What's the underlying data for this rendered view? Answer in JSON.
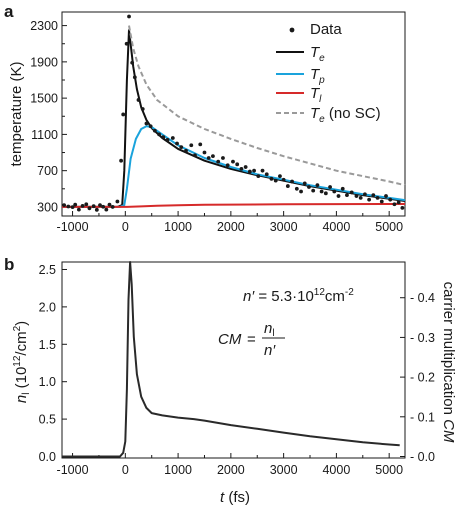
{
  "panels": {
    "a": "a",
    "b": "b"
  },
  "chart_data": [
    {
      "type": "line",
      "panel": "a",
      "ylabel": "temperature  (K)",
      "xlim": [
        -1200,
        5300
      ],
      "ylim": [
        200,
        2450
      ],
      "xticks": [
        -1000,
        0,
        1000,
        2000,
        3000,
        4000,
        5000
      ],
      "xtick_labels": [
        "-1000",
        "0",
        "1000",
        "2000",
        "3000",
        "4000",
        "5000"
      ],
      "yticks": [
        300,
        700,
        1100,
        1500,
        1900,
        2300
      ],
      "ytick_labels": [
        "300",
        "700",
        "1100",
        "1500",
        "1900",
        "2300"
      ],
      "legend_position": "top-right",
      "series": [
        {
          "name": "Data",
          "kind": "scatter",
          "color": "#1a1a1a",
          "points": [
            [
              -1160,
              320
            ],
            [
              -1080,
              305
            ],
            [
              -1000,
              298
            ],
            [
              -950,
              325
            ],
            [
              -880,
              270
            ],
            [
              -810,
              312
            ],
            [
              -740,
              330
            ],
            [
              -680,
              285
            ],
            [
              -600,
              308
            ],
            [
              -540,
              268
            ],
            [
              -480,
              320
            ],
            [
              -420,
              302
            ],
            [
              -360,
              270
            ],
            [
              -300,
              325
            ],
            [
              -240,
              300
            ],
            [
              -150,
              360
            ],
            [
              -80,
              810
            ],
            [
              -40,
              1320
            ],
            [
              25,
              2100
            ],
            [
              70,
              2400
            ],
            [
              130,
              1890
            ],
            [
              180,
              1730
            ],
            [
              250,
              1480
            ],
            [
              330,
              1380
            ],
            [
              400,
              1220
            ],
            [
              480,
              1190
            ],
            [
              560,
              1140
            ],
            [
              640,
              1100
            ],
            [
              720,
              1070
            ],
            [
              800,
              1040
            ],
            [
              900,
              1060
            ],
            [
              980,
              1000
            ],
            [
              1060,
              960
            ],
            [
              1150,
              920
            ],
            [
              1250,
              980
            ],
            [
              1320,
              870
            ],
            [
              1420,
              990
            ],
            [
              1500,
              900
            ],
            [
              1580,
              840
            ],
            [
              1660,
              860
            ],
            [
              1760,
              800
            ],
            [
              1850,
              840
            ],
            [
              1940,
              760
            ],
            [
              2040,
              800
            ],
            [
              2120,
              770
            ],
            [
              2200,
              720
            ],
            [
              2280,
              740
            ],
            [
              2360,
              690
            ],
            [
              2440,
              700
            ],
            [
              2520,
              640
            ],
            [
              2600,
              700
            ],
            [
              2680,
              660
            ],
            [
              2770,
              610
            ],
            [
              2850,
              590
            ],
            [
              2930,
              640
            ],
            [
              3000,
              600
            ],
            [
              3080,
              530
            ],
            [
              3160,
              580
            ],
            [
              3250,
              500
            ],
            [
              3330,
              470
            ],
            [
              3400,
              560
            ],
            [
              3480,
              520
            ],
            [
              3560,
              480
            ],
            [
              3640,
              540
            ],
            [
              3720,
              470
            ],
            [
              3800,
              450
            ],
            [
              3880,
              520
            ],
            [
              3960,
              470
            ],
            [
              4040,
              420
            ],
            [
              4120,
              500
            ],
            [
              4200,
              430
            ],
            [
              4290,
              460
            ],
            [
              4380,
              420
            ],
            [
              4460,
              400
            ],
            [
              4540,
              440
            ],
            [
              4620,
              380
            ],
            [
              4700,
              430
            ],
            [
              4780,
              400
            ],
            [
              4860,
              360
            ],
            [
              4940,
              420
            ],
            [
              5020,
              380
            ],
            [
              5100,
              330
            ],
            [
              5180,
              350
            ],
            [
              5250,
              290
            ]
          ]
        },
        {
          "name": "T",
          "subscript": "e",
          "kind": "line",
          "color": "#111111",
          "points": [
            [
              -1200,
              300
            ],
            [
              -150,
              300
            ],
            [
              -60,
              320
            ],
            [
              -20,
              700
            ],
            [
              30,
              1700
            ],
            [
              70,
              2250
            ],
            [
              100,
              2100
            ],
            [
              150,
              1850
            ],
            [
              220,
              1600
            ],
            [
              300,
              1400
            ],
            [
              400,
              1260
            ],
            [
              500,
              1170
            ],
            [
              700,
              1060
            ],
            [
              1000,
              940
            ],
            [
              1500,
              810
            ],
            [
              2000,
              720
            ],
            [
              2500,
              650
            ],
            [
              3000,
              590
            ],
            [
              3500,
              530
            ],
            [
              4000,
              480
            ],
            [
              4500,
              430
            ],
            [
              5000,
              390
            ],
            [
              5300,
              365
            ]
          ]
        },
        {
          "name": "T",
          "subscript": "p",
          "kind": "line",
          "color": "#1aa3dc",
          "points": [
            [
              -1200,
              300
            ],
            [
              -100,
              300
            ],
            [
              -20,
              320
            ],
            [
              30,
              500
            ],
            [
              100,
              830
            ],
            [
              200,
              1050
            ],
            [
              300,
              1160
            ],
            [
              400,
              1190
            ],
            [
              500,
              1180
            ],
            [
              700,
              1100
            ],
            [
              1000,
              980
            ],
            [
              1500,
              840
            ],
            [
              2000,
              740
            ],
            [
              2500,
              660
            ],
            [
              3000,
              600
            ],
            [
              3500,
              540
            ],
            [
              4000,
              490
            ],
            [
              4500,
              440
            ],
            [
              5000,
              400
            ],
            [
              5300,
              375
            ]
          ]
        },
        {
          "name": "T",
          "subscript": "l",
          "kind": "line",
          "color": "#d62a2a",
          "points": [
            [
              -1200,
              300
            ],
            [
              0,
              300
            ],
            [
              300,
              306
            ],
            [
              600,
              312
            ],
            [
              1000,
              318
            ],
            [
              1500,
              323
            ],
            [
              2000,
              326
            ],
            [
              3000,
              329
            ],
            [
              4000,
              331
            ],
            [
              5300,
              332
            ]
          ]
        },
        {
          "name": "T",
          "subscript": "e",
          "suffix": " (no SC)",
          "kind": "dashed",
          "color": "#9a9a9a",
          "points": [
            [
              70,
              2300
            ],
            [
              150,
              2050
            ],
            [
              250,
              1850
            ],
            [
              400,
              1650
            ],
            [
              600,
              1480
            ],
            [
              1000,
              1300
            ],
            [
              1500,
              1160
            ],
            [
              2000,
              1050
            ],
            [
              2500,
              950
            ],
            [
              3000,
              860
            ],
            [
              3500,
              780
            ],
            [
              4000,
              700
            ],
            [
              4500,
              640
            ],
            [
              5000,
              580
            ],
            [
              5300,
              540
            ]
          ]
        }
      ]
    },
    {
      "type": "line",
      "panel": "b",
      "xlabel": "t (fs)",
      "ylabel_left": "n_l (10^12/cm^2)",
      "ylabel_right": "carrier multiplication CM",
      "xlim": [
        -1200,
        5300
      ],
      "ylim": [
        -0.02,
        2.6
      ],
      "ylim_right": [
        -0.0038,
        0.49
      ],
      "xticks": [
        -1000,
        0,
        1000,
        2000,
        3000,
        4000,
        5000
      ],
      "xtick_labels": [
        "-1000",
        "0",
        "1000",
        "2000",
        "3000",
        "4000",
        "5000"
      ],
      "yticks": [
        0.0,
        0.5,
        1.0,
        1.5,
        2.0,
        2.5
      ],
      "ytick_labels": [
        "0.0",
        "0.5",
        "1.0",
        "1.5",
        "2.0",
        "2.5"
      ],
      "yticks_right": [
        0.0,
        0.1,
        0.2,
        0.3,
        0.4
      ],
      "ytick_labels_right": [
        "0.0",
        "0.1",
        "0.2",
        "0.3",
        "0.4"
      ],
      "annotation_nprime": "5.3·10^12 cm^-2",
      "annotation_cm": "CM = n_l / n'",
      "series": [
        {
          "kind": "line",
          "color": "#2a2a2a",
          "points": [
            [
              -1200,
              0.0
            ],
            [
              -100,
              0.0
            ],
            [
              -40,
              0.05
            ],
            [
              0,
              0.2
            ],
            [
              30,
              0.9
            ],
            [
              60,
              2.1
            ],
            [
              90,
              2.6
            ],
            [
              120,
              2.3
            ],
            [
              160,
              1.6
            ],
            [
              220,
              1.1
            ],
            [
              300,
              0.8
            ],
            [
              400,
              0.65
            ],
            [
              500,
              0.58
            ],
            [
              700,
              0.55
            ],
            [
              1000,
              0.52
            ],
            [
              1300,
              0.5
            ],
            [
              1500,
              0.48
            ],
            [
              2000,
              0.42
            ],
            [
              2500,
              0.37
            ],
            [
              3000,
              0.32
            ],
            [
              3500,
              0.27
            ],
            [
              4000,
              0.23
            ],
            [
              4500,
              0.19
            ],
            [
              5000,
              0.16
            ],
            [
              5200,
              0.15
            ]
          ]
        }
      ]
    }
  ]
}
